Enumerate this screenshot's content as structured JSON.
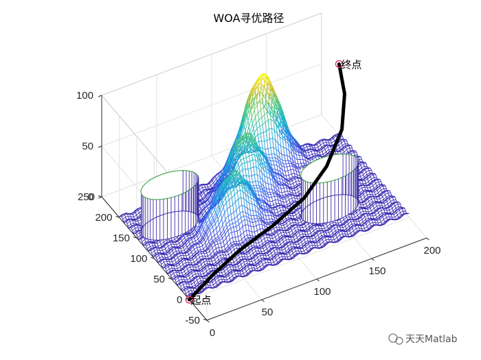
{
  "title": "WOA寻优路径",
  "chart_data": {
    "type": "surface",
    "title": "WOA寻优路径",
    "xlim": [
      0,
      200
    ],
    "ylim": [
      -50,
      250
    ],
    "zlim": [
      0,
      100
    ],
    "x_ticks": [
      "0",
      "50",
      "100",
      "150",
      "200"
    ],
    "y_ticks": [
      "-50",
      "0",
      "50",
      "100",
      "150",
      "200",
      "250"
    ],
    "z_ticks": [
      "0",
      "50",
      "100"
    ],
    "grid": true,
    "terrain_peaks": [
      {
        "x": 125,
        "y": 185,
        "height": 95
      },
      {
        "x": 95,
        "y": 140,
        "height": 65
      },
      {
        "x": 70,
        "y": 95,
        "height": 55
      }
    ],
    "cylinder_obstacles": [
      {
        "x": 30,
        "y": 150,
        "radius": 25,
        "height": 40
      },
      {
        "x": 150,
        "y": 70,
        "radius": 25,
        "height": 40
      }
    ],
    "start": {
      "label": "起点",
      "x": 0,
      "y": 0,
      "z": 0
    },
    "end": {
      "label": "终点",
      "x": 200,
      "y": 200,
      "z": 70
    },
    "path": [
      {
        "x": 0,
        "y": 0,
        "z": 0
      },
      {
        "x": 30,
        "y": 25,
        "z": 3
      },
      {
        "x": 60,
        "y": 45,
        "z": 6
      },
      {
        "x": 95,
        "y": 60,
        "z": 10
      },
      {
        "x": 130,
        "y": 80,
        "z": 15
      },
      {
        "x": 160,
        "y": 110,
        "z": 22
      },
      {
        "x": 185,
        "y": 145,
        "z": 34
      },
      {
        "x": 197,
        "y": 175,
        "z": 52
      },
      {
        "x": 200,
        "y": 200,
        "z": 70
      }
    ]
  },
  "watermark": "天天Matlab"
}
